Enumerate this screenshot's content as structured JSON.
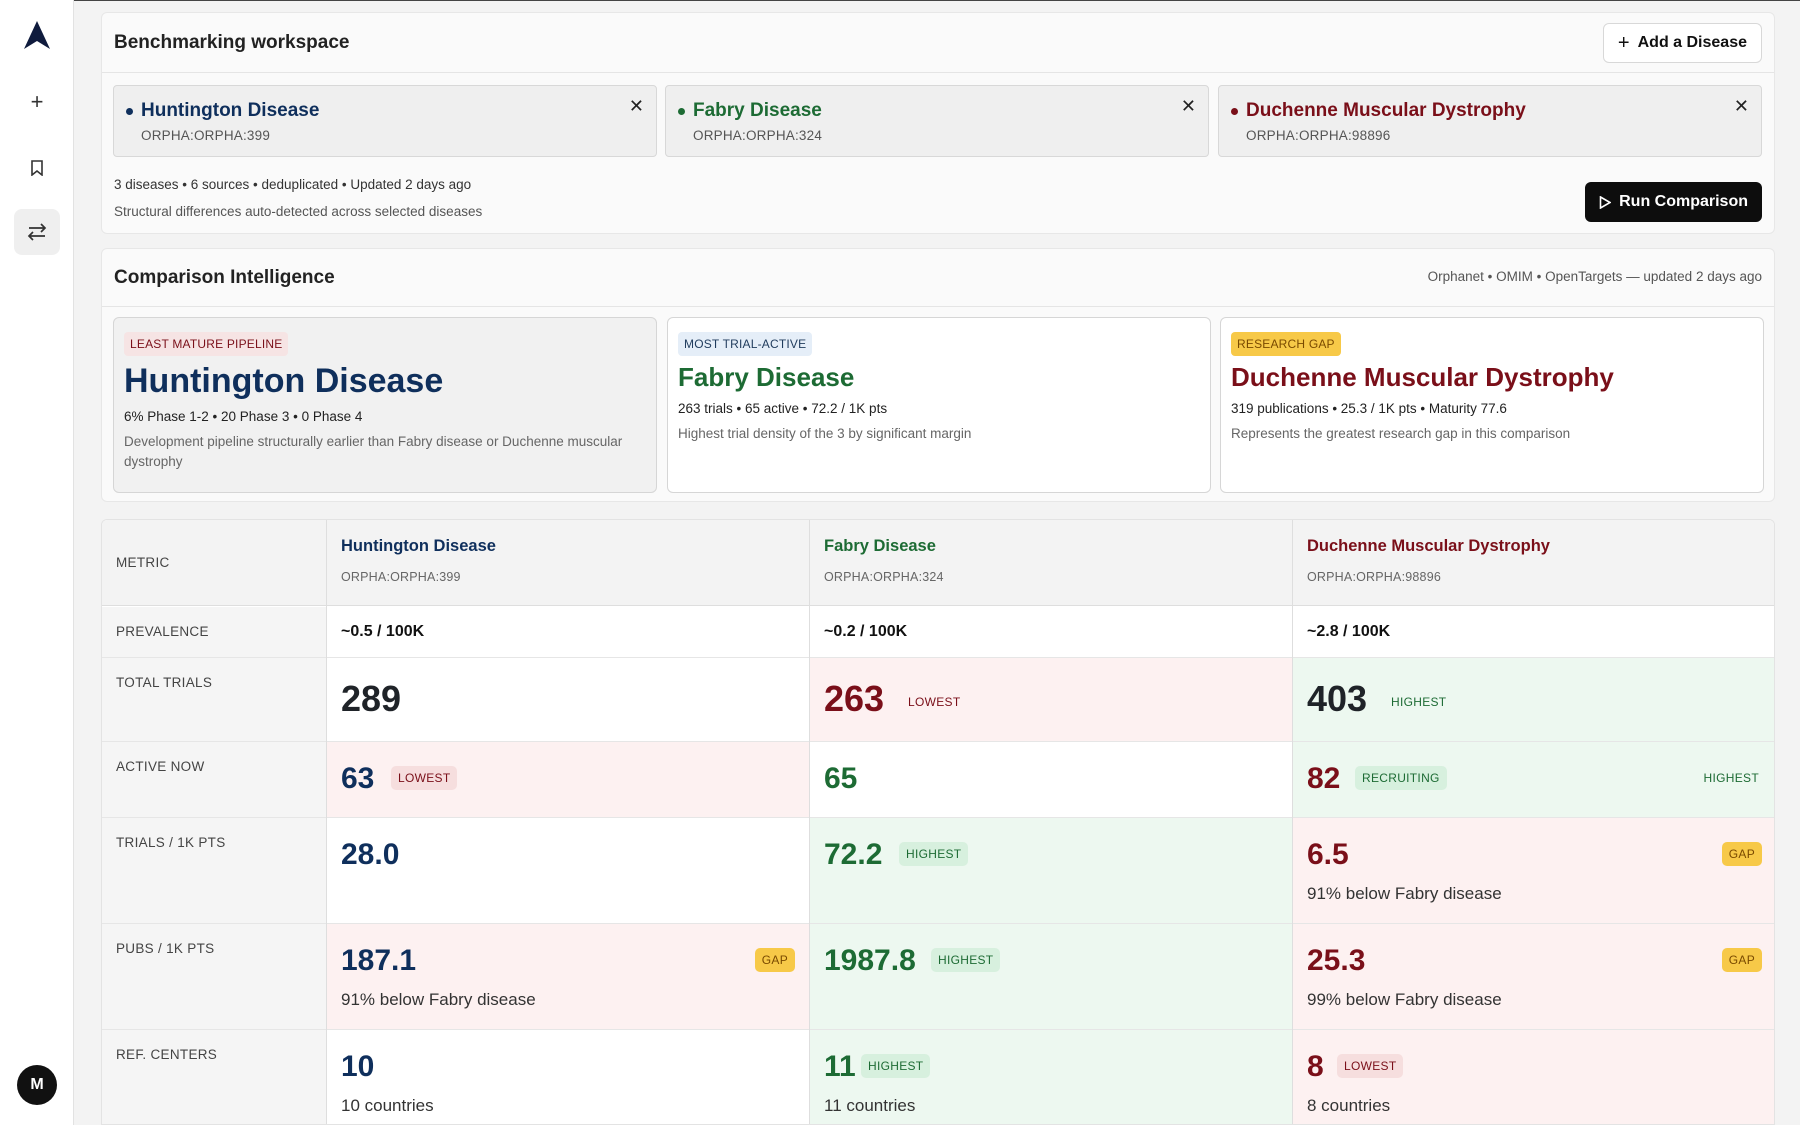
{
  "rail": {
    "avatar_letter": "M"
  },
  "workspace": {
    "title": "Benchmarking workspace",
    "add_button": "Add a Disease",
    "diseases": [
      {
        "name": "Huntington Disease",
        "code": "ORPHA:ORPHA:399",
        "color": "#0f2f5c"
      },
      {
        "name": "Fabry Disease",
        "code": "ORPHA:ORPHA:324",
        "color": "#1d6b34"
      },
      {
        "name": "Duchenne Muscular Dystrophy",
        "code": "ORPHA:ORPHA:98896",
        "color": "#7a0f19"
      }
    ],
    "meta": "3 diseases  •  6 sources  •  deduplicated  •  Updated 2 days ago",
    "subtitle": "Structural differences auto-detected across selected diseases",
    "run_button": "Run Comparison"
  },
  "intelligence": {
    "title": "Comparison Intelligence",
    "sources": "Orphanet  •  OMIM  •  OpenTargets — updated 2 days ago",
    "cards": [
      {
        "badge": "LEAST MATURE PIPELINE",
        "name": "Huntington Disease",
        "stats": "6% Phase 1-2 • 20 Phase 3 • 0 Phase 4",
        "desc": "Development pipeline structurally earlier than Fabry disease or Duchenne muscular dystrophy"
      },
      {
        "badge": "MOST TRIAL-ACTIVE",
        "name": "Fabry Disease",
        "stats": "263 trials • 65 active • 72.2 / 1K pts",
        "desc": "Highest trial density of the 3 by significant margin"
      },
      {
        "badge": "RESEARCH GAP",
        "name": "Duchenne Muscular Dystrophy",
        "stats": "319 publications • 25.3 / 1K pts • Maturity 77.6",
        "desc": "Represents the greatest research gap in this comparison"
      }
    ]
  },
  "table": {
    "metric_header": "METRIC",
    "columns": [
      {
        "name": "Huntington Disease",
        "code": "ORPHA:ORPHA:399"
      },
      {
        "name": "Fabry Disease",
        "code": "ORPHA:ORPHA:324"
      },
      {
        "name": "Duchenne Muscular Dystrophy",
        "code": "ORPHA:ORPHA:98896"
      }
    ],
    "rows": [
      {
        "label": "PREVALENCE",
        "cells": [
          {
            "value": "~0.5 / 100K"
          },
          {
            "value": "~0.2 / 100K"
          },
          {
            "value": "~2.8 / 100K"
          }
        ]
      },
      {
        "label": "TOTAL TRIALS",
        "cells": [
          {
            "value": "289"
          },
          {
            "value": "263",
            "tag": "LOWEST"
          },
          {
            "value": "403",
            "tag": "HIGHEST"
          }
        ]
      },
      {
        "label": "ACTIVE NOW",
        "cells": [
          {
            "value": "63",
            "tag": "LOWEST"
          },
          {
            "value": "65"
          },
          {
            "value": "82",
            "tag": "RECRUITING",
            "tag2": "HIGHEST"
          }
        ]
      },
      {
        "label": "TRIALS / 1K PTS",
        "cells": [
          {
            "value": "28.0"
          },
          {
            "value": "72.2",
            "tag": "HIGHEST"
          },
          {
            "value": "6.5",
            "tag": "GAP",
            "note": "91% below Fabry disease"
          }
        ]
      },
      {
        "label": "PUBS / 1K PTS",
        "cells": [
          {
            "value": "187.1",
            "tag": "GAP",
            "note": "91% below Fabry disease"
          },
          {
            "value": "1987.8",
            "tag": "HIGHEST"
          },
          {
            "value": "25.3",
            "tag": "GAP",
            "note": "99% below Fabry disease"
          }
        ]
      },
      {
        "label": "REF. CENTERS",
        "cells": [
          {
            "value": "10",
            "note": "10 countries"
          },
          {
            "value": "11",
            "tag": "HIGHEST",
            "note": "11 countries"
          },
          {
            "value": "8",
            "tag": "LOWEST",
            "note": "8 countries"
          }
        ]
      }
    ]
  }
}
